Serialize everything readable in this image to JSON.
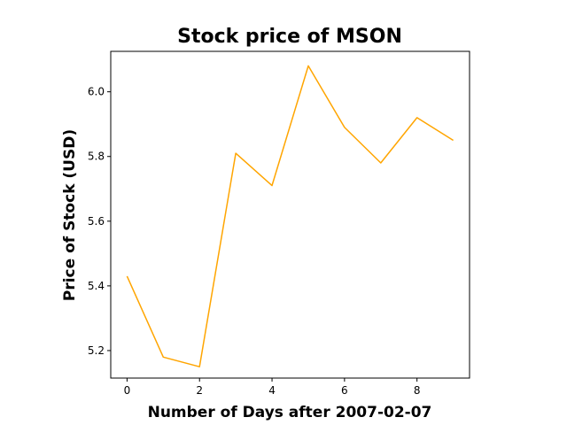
{
  "chart_data": {
    "type": "line",
    "title": "Stock price of MSON",
    "xlabel": "Number of Days after 2007-02-07",
    "ylabel": "Price of Stock (USD)",
    "x": [
      0,
      1,
      2,
      3,
      4,
      5,
      6,
      7,
      8,
      9
    ],
    "series": [
      {
        "values": [
          5.43,
          5.18,
          5.15,
          5.81,
          5.71,
          6.08,
          5.89,
          5.78,
          5.92,
          5.85
        ],
        "color": "#ffa500"
      }
    ],
    "xlim": [
      -0.45,
      9.45
    ],
    "ylim": [
      5.115,
      6.125
    ],
    "xticks": [
      0,
      2,
      4,
      6,
      8
    ],
    "xtick_labels": [
      "0",
      "2",
      "4",
      "6",
      "8"
    ],
    "yticks": [
      5.2,
      5.4,
      5.6,
      5.8,
      6.0
    ],
    "ytick_labels": [
      "5.2",
      "5.4",
      "5.6",
      "5.8",
      "6.0"
    ],
    "grid": false,
    "legend": "none"
  }
}
